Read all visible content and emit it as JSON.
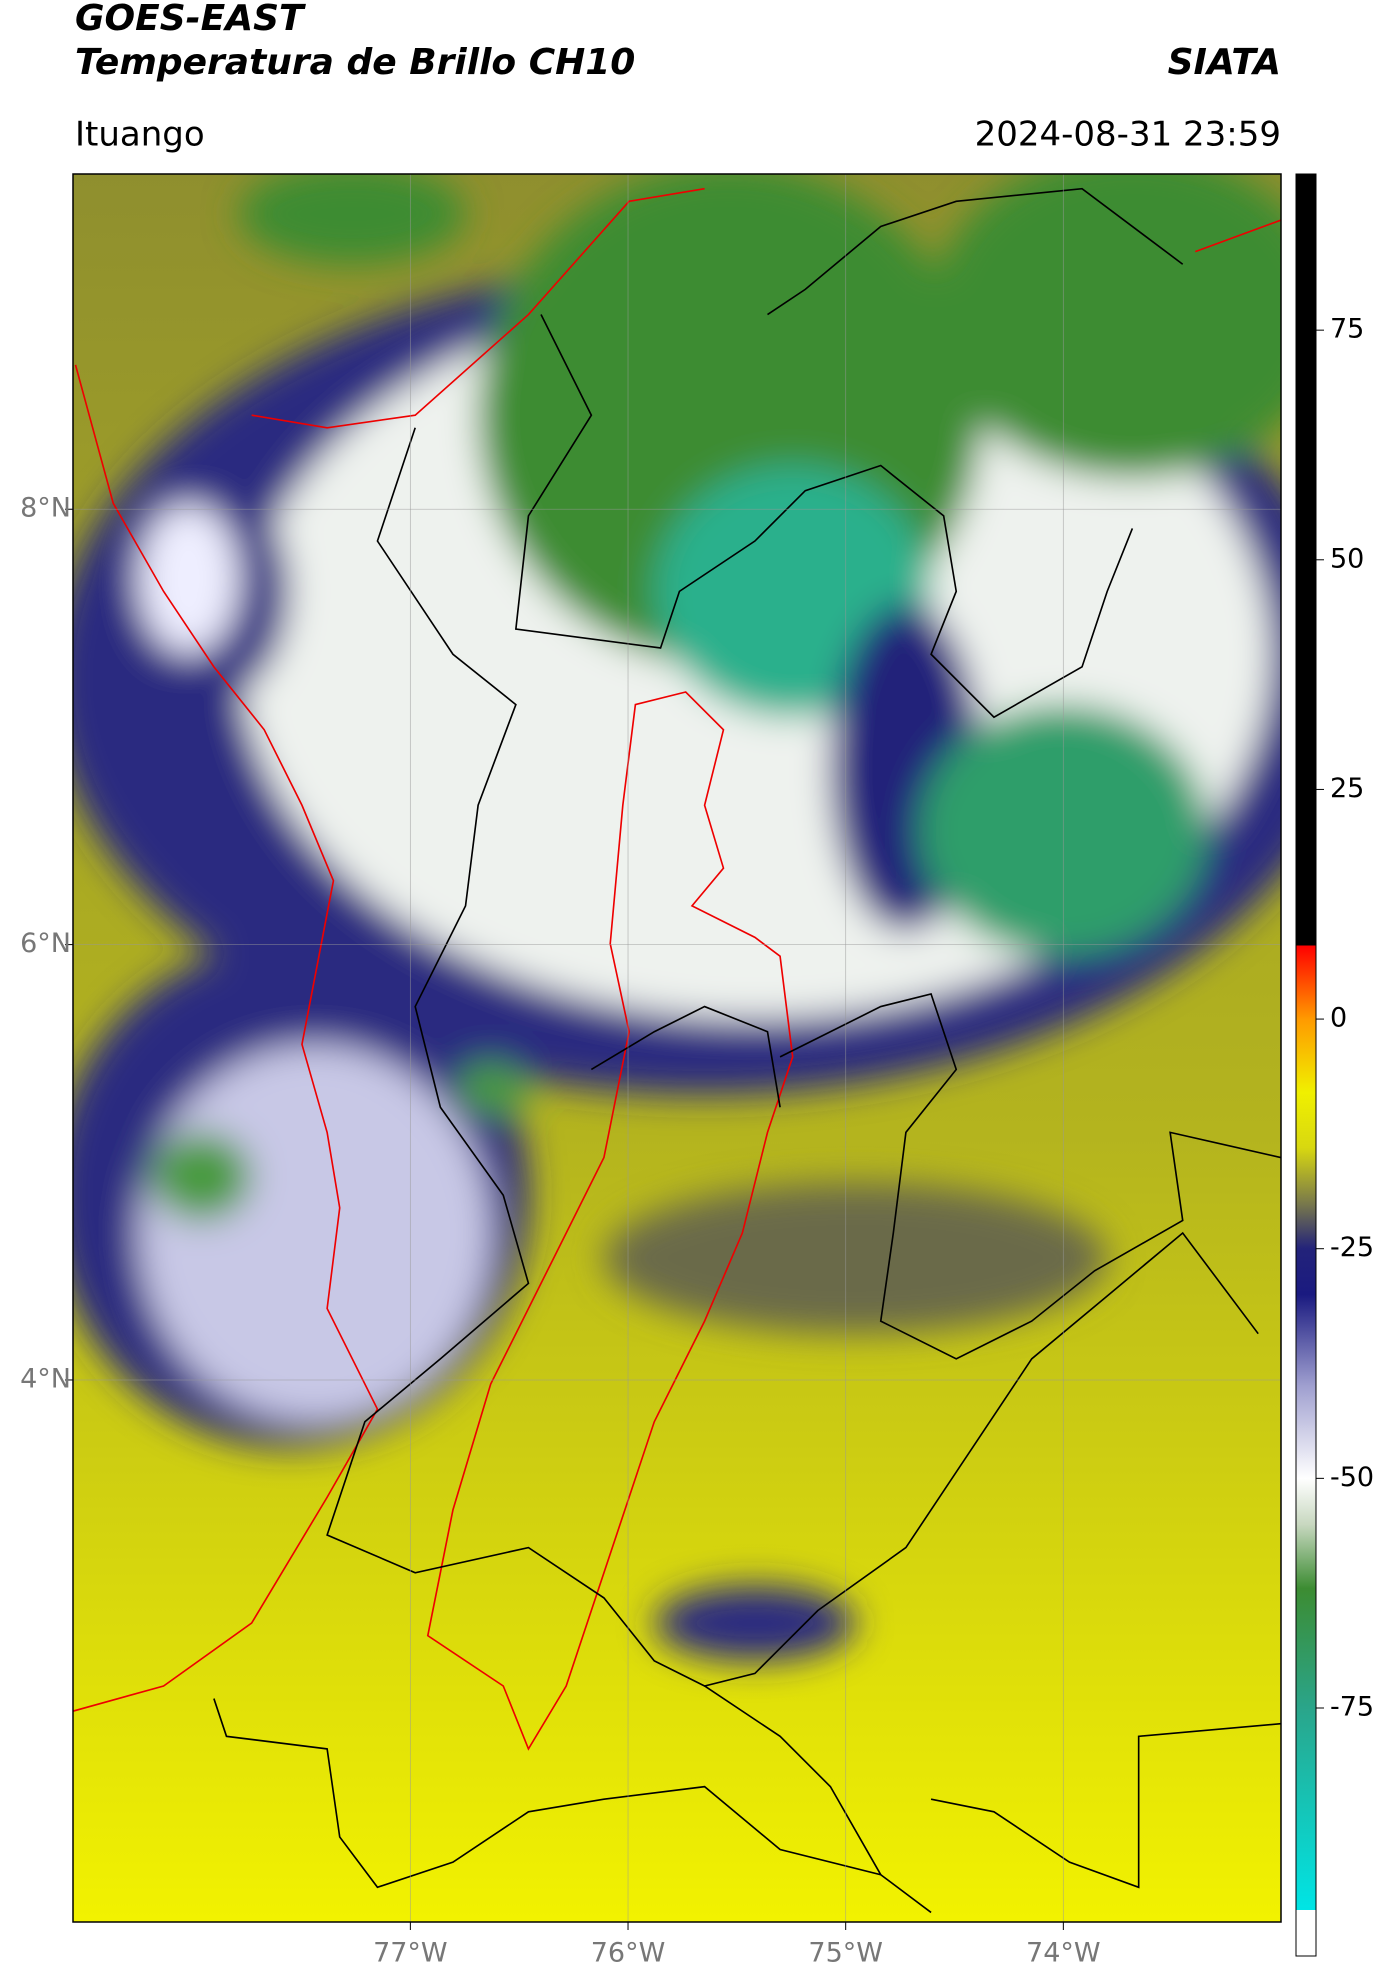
{
  "header": {
    "satellite": "GOES-EAST",
    "product": "Temperatura de Brillo CH10",
    "agency": "SIATA",
    "region": "Ituango",
    "timestamp": "2024-08-31 23:59"
  },
  "map": {
    "xlim": [
      -78.55,
      -73.0
    ],
    "ylim": [
      1.51,
      9.54
    ],
    "xticks": [
      {
        "value": -77,
        "label": "77°W"
      },
      {
        "value": -76,
        "label": "76°W"
      },
      {
        "value": -75,
        "label": "75°W"
      },
      {
        "value": -74,
        "label": "74°W"
      }
    ],
    "yticks": [
      {
        "value": 8,
        "label": "8°N"
      },
      {
        "value": 6,
        "label": "6°N"
      },
      {
        "value": 4,
        "label": "4°N"
      }
    ],
    "grid": true
  },
  "colorbar": {
    "clim": [
      -102,
      92
    ],
    "ticks": [
      75,
      50,
      25,
      0,
      -25,
      -50,
      -75
    ],
    "stops": [
      {
        "value": -102,
        "color": "#ffffff"
      },
      {
        "value": -97,
        "color": "#ffffff"
      },
      {
        "value": -97,
        "color": "#00e5e5"
      },
      {
        "value": -75,
        "color": "#2aa58a"
      },
      {
        "value": -62,
        "color": "#3c8c32"
      },
      {
        "value": -55,
        "color": "#c8d8c0"
      },
      {
        "value": -50,
        "color": "#ffffff"
      },
      {
        "value": -40,
        "color": "#a0a0d0"
      },
      {
        "value": -30,
        "color": "#1a1a80"
      },
      {
        "value": -25,
        "color": "#23237a"
      },
      {
        "value": -20,
        "color": "#7a7a4a"
      },
      {
        "value": -14,
        "color": "#d8d810"
      },
      {
        "value": -8,
        "color": "#f0f000"
      },
      {
        "value": 0,
        "color": "#ff9a00"
      },
      {
        "value": 8,
        "color": "#ff0000"
      },
      {
        "value": 8,
        "color": "#000000"
      },
      {
        "value": 92,
        "color": "#000000"
      }
    ]
  }
}
